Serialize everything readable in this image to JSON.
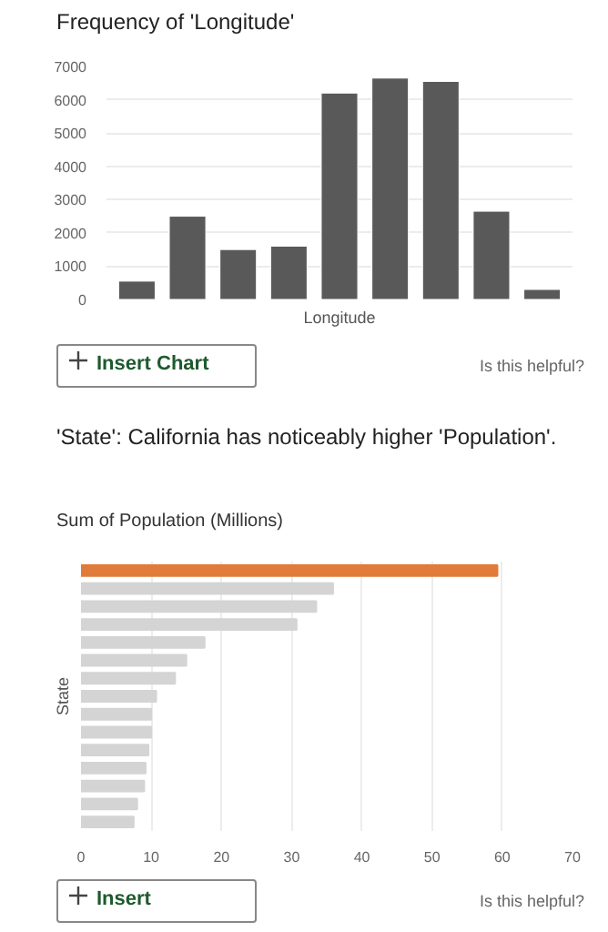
{
  "chart_data": [
    {
      "type": "bar",
      "title": "Frequency of 'Longitude'",
      "xlabel": "Longitude",
      "categories": [
        null,
        null,
        null,
        null,
        null,
        null,
        null,
        null,
        null
      ],
      "values": [
        550,
        2500,
        1500,
        1600,
        6200,
        6650,
        6550,
        2650,
        300
      ],
      "colors": [
        "#595959",
        "#595959",
        "#595959",
        "#595959",
        "#595959",
        "#595959",
        "#595959",
        "#595959",
        "#595959"
      ],
      "ylim": [
        0,
        7000
      ],
      "yticks": [
        0,
        1000,
        2000,
        3000,
        4000,
        5000,
        6000,
        7000
      ],
      "grid": "y",
      "annotations": [
        "Insert Chart",
        "Is this helpful?"
      ]
    },
    {
      "type": "bar",
      "orientation": "horizontal",
      "title": "'State': California has noticeably higher 'Population'.",
      "subtitle": "Sum of Population (Millions)",
      "ylabel": "State",
      "categories": [
        null,
        null,
        null,
        null,
        null,
        null,
        null,
        null,
        null,
        null,
        null,
        null,
        null,
        null,
        null
      ],
      "values": [
        59.3,
        35.9,
        33.5,
        30.7,
        17.6,
        15.0,
        13.4,
        10.7,
        10.0,
        10.0,
        9.6,
        9.2,
        9.0,
        8.0,
        7.5
      ],
      "colors": [
        "#e07b39",
        "#d4d4d4",
        "#d4d4d4",
        "#d4d4d4",
        "#d4d4d4",
        "#d4d4d4",
        "#d4d4d4",
        "#d4d4d4",
        "#d4d4d4",
        "#d4d4d4",
        "#d4d4d4",
        "#d4d4d4",
        "#d4d4d4",
        "#d4d4d4",
        "#d4d4d4"
      ],
      "xlim": [
        0,
        70
      ],
      "xticks": [
        0,
        10,
        20,
        30,
        40,
        50,
        60,
        70
      ],
      "grid": "x",
      "annotations": [
        "Insert",
        "Is this helpful?"
      ]
    }
  ]
}
